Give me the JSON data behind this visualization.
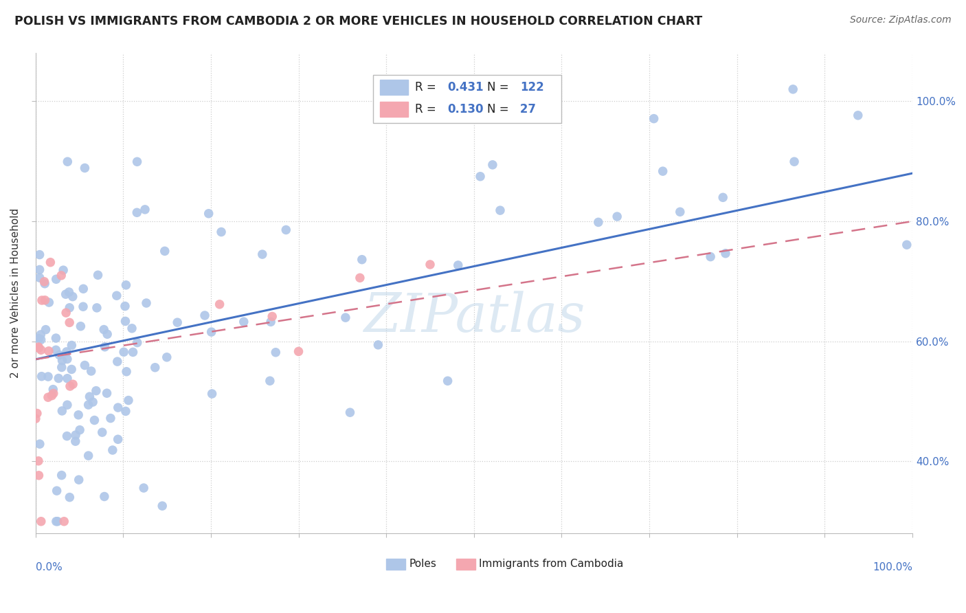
{
  "title": "POLISH VS IMMIGRANTS FROM CAMBODIA 2 OR MORE VEHICLES IN HOUSEHOLD CORRELATION CHART",
  "source": "Source: ZipAtlas.com",
  "ylabel": "2 or more Vehicles in Household",
  "blue_line_color": "#4472c4",
  "pink_line_color": "#d4748a",
  "scatter_blue_color": "#aec6e8",
  "scatter_pink_color": "#f4a7b0",
  "watermark": "ZIPatlas",
  "background_color": "#ffffff",
  "grid_color": "#dddddd",
  "xlim": [
    0.0,
    1.0
  ],
  "ylim": [
    0.28,
    1.08
  ],
  "blue_line_x0": 0.0,
  "blue_line_y0": 0.57,
  "blue_line_x1": 1.0,
  "blue_line_y1": 0.88,
  "pink_line_x0": 0.0,
  "pink_line_y0": 0.57,
  "pink_line_x1": 1.0,
  "pink_line_y1": 0.8,
  "right_ytick_labels": [
    "40.0%",
    "60.0%",
    "80.0%",
    "100.0%"
  ],
  "right_ytick_values": [
    0.4,
    0.6,
    0.8,
    1.0
  ],
  "R_blue": "0.431",
  "N_blue": "122",
  "R_pink": "0.130",
  "N_pink": "27"
}
